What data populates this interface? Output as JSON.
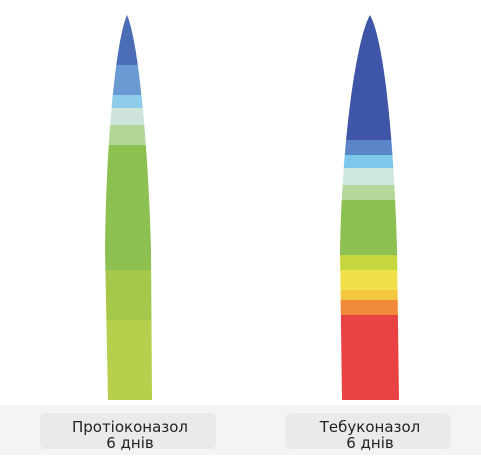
{
  "panels": [
    {
      "label": "Протіоконазол",
      "sublabel": "6 днів"
    },
    {
      "label": "Тебуконазол",
      "sublabel": "6 днів"
    }
  ]
}
